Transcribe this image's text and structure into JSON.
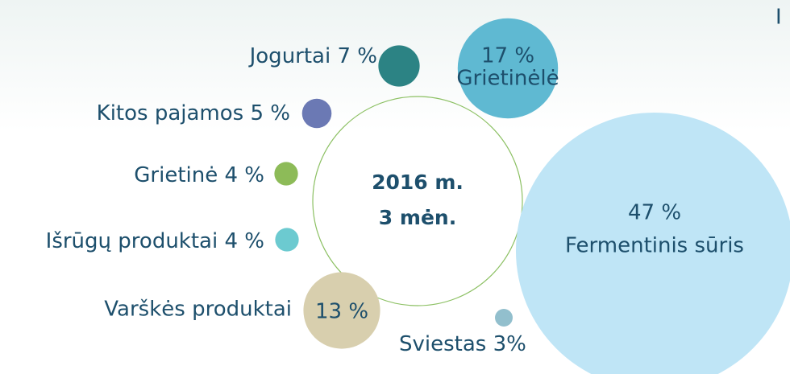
{
  "chart_data": {
    "type": "packed-bubble",
    "center_label": [
      "2016 m.",
      "3 mėn."
    ],
    "corner_text": "I",
    "categories": [
      "Jogurtai",
      "Kitos pajamos",
      "Grietinė",
      "Išrūgų produktai",
      "Varškės produktai",
      "Sviestas",
      "Grietinėlė",
      "Fermentinis sūris"
    ],
    "values": [
      7,
      5,
      4,
      4,
      13,
      3,
      17,
      47
    ],
    "value_labels": [
      "7 %",
      "5 %",
      "4 %",
      "4 %",
      "13 %",
      "3%",
      "17 %",
      "47 %"
    ],
    "colors": [
      "#2c8384",
      "#6b79b4",
      "#8dbb58",
      "#6ccad0",
      "#d8cfae",
      "#92bfcd",
      "#5fb9d2",
      "#bfe5f6"
    ]
  }
}
